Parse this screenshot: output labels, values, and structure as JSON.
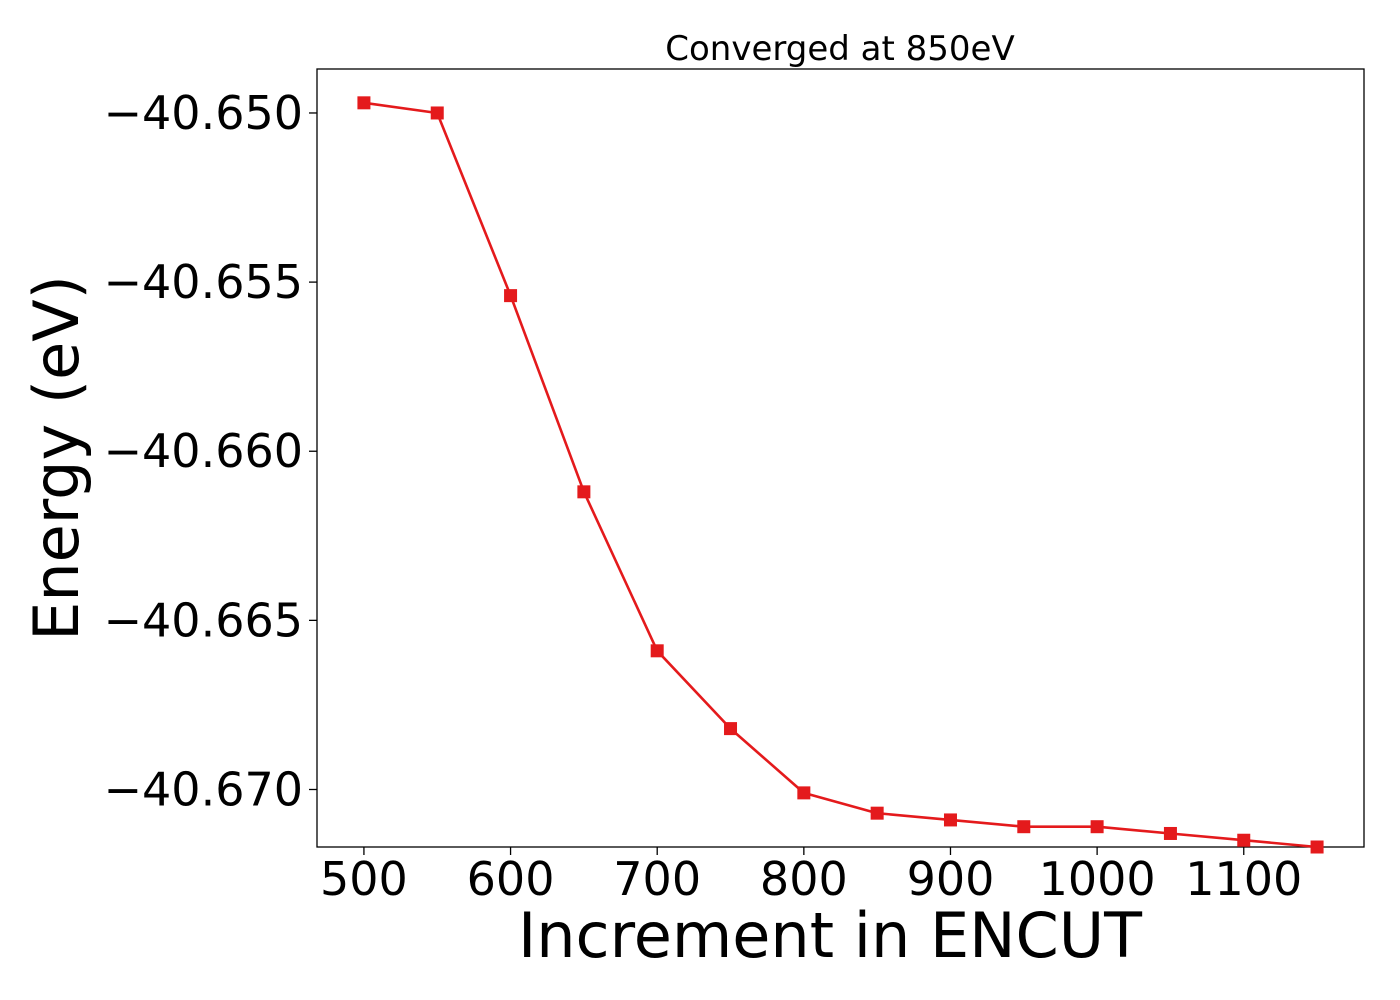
{
  "chart_data": {
    "type": "line",
    "title": "Converged at 850eV",
    "xlabel": "Increment in ENCUT",
    "ylabel": "Energy (eV)",
    "xlim": [
      468,
      1182
    ],
    "ylim": [
      -40.6717,
      -40.6487
    ],
    "xticks": [
      500,
      600,
      700,
      800,
      900,
      1000,
      1100
    ],
    "xtick_labels": [
      "500",
      "600",
      "700",
      "800",
      "900",
      "1000",
      "1100"
    ],
    "yticks": [
      -40.65,
      -40.655,
      -40.66,
      -40.665,
      -40.67
    ],
    "ytick_labels": [
      "−40.650",
      "−40.655",
      "−40.660",
      "−40.665",
      "−40.670"
    ],
    "grid": false,
    "series": [
      {
        "color": "#e41a1c",
        "marker": "square",
        "x": [
          500,
          550,
          600,
          650,
          700,
          750,
          800,
          850,
          900,
          950,
          1000,
          1050,
          1100,
          1150
        ],
        "y": [
          -40.6497,
          -40.65,
          -40.6554,
          -40.6612,
          -40.6659,
          -40.6682,
          -40.6701,
          -40.6707,
          -40.6709,
          -40.6711,
          -40.6711,
          -40.6713,
          -40.6715,
          -40.6717
        ]
      }
    ]
  }
}
